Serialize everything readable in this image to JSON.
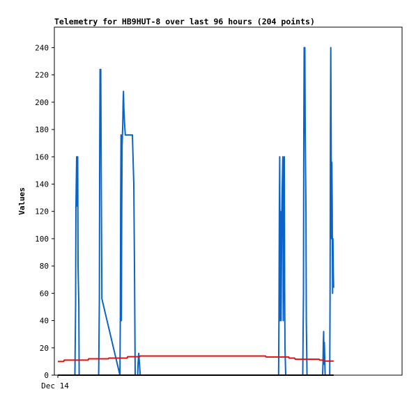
{
  "chart_data": {
    "type": "line",
    "title": "Telemetry for HB9HUT-8 over last 96 hours (204 points)",
    "xlabel": "",
    "ylabel": "Values",
    "ylim": [
      0,
      255
    ],
    "y_ticks": [
      0,
      20,
      40,
      60,
      80,
      100,
      120,
      140,
      160,
      180,
      200,
      220,
      240
    ],
    "x_ticks": [
      {
        "label": "Dec 14",
        "x": 0
      }
    ],
    "x_unit": "hours",
    "xlim": [
      0,
      96
    ],
    "grid": false,
    "legend": "none",
    "series": [
      {
        "color": "#0a64c8",
        "x": [
          4.8,
          5.0,
          5.1,
          5.3,
          5.4,
          5.6,
          5.7,
          5.9,
          6.0,
          6.2,
          11.5,
          11.7,
          11.8,
          11.9,
          12.0,
          12.1,
          12.2,
          12.4,
          17.5,
          17.6,
          17.7,
          17.8,
          17.9,
          18.0,
          18.1,
          18.3,
          18.4,
          18.5,
          18.6,
          18.8,
          19.0,
          19.3,
          19.5,
          19.7,
          20.0,
          20.4,
          21.0,
          21.4,
          21.6,
          21.8,
          22.5,
          22.6,
          22.8,
          23.0,
          23.2,
          62.2,
          62.3,
          62.4,
          62.5,
          62.6,
          62.7,
          62.9,
          63.1,
          63.4,
          63.5,
          63.6,
          63.8,
          63.9,
          64.0,
          64.2,
          64.5,
          64.7,
          69.0,
          69.2,
          69.3,
          69.4,
          69.5,
          69.6,
          69.7,
          69.9,
          70.0,
          70.2,
          74.6,
          74.7,
          74.8,
          74.9,
          75.0,
          75.1,
          75.3,
          76.6,
          76.7,
          76.8,
          76.9,
          77.0,
          77.1,
          77.2,
          77.3,
          77.4,
          77.5,
          77.6,
          77.7
        ],
        "values": [
          0,
          52,
          124,
          160,
          124,
          160,
          80,
          52,
          0,
          0,
          0,
          56,
          168,
          224,
          224,
          224,
          168,
          56,
          0,
          44,
          132,
          176,
          40,
          120,
          168,
          184,
          200,
          208,
          196,
          184,
          176,
          176,
          176,
          176,
          176,
          176,
          176,
          140,
          80,
          0,
          0,
          8,
          16,
          8,
          0,
          0,
          40,
          120,
          160,
          40,
          120,
          40,
          120,
          160,
          40,
          120,
          160,
          64,
          20,
          0,
          0,
          0,
          0,
          60,
          180,
          240,
          200,
          240,
          180,
          120,
          40,
          0,
          0,
          8,
          24,
          32,
          8,
          24,
          0,
          0,
          60,
          180,
          240,
          180,
          100,
          156,
          128,
          60,
          100,
          76,
          64
        ]
      },
      {
        "color": "#e01010",
        "x": [
          0.0,
          1.6,
          1.8,
          8.5,
          8.7,
          14.2,
          14.4,
          19.5,
          19.7,
          23.0,
          23.2,
          58.5,
          58.7,
          65.0,
          65.2,
          66.7,
          66.9,
          73.6,
          73.8,
          75.0,
          75.2,
          77.7
        ],
        "values": [
          10,
          10,
          11,
          11,
          12,
          12,
          12.5,
          12.5,
          13.5,
          13.5,
          14,
          14,
          13.3,
          13.3,
          12.5,
          12.5,
          11.7,
          11.7,
          11,
          11,
          10.3,
          10.3
        ]
      },
      {
        "color": "#000000",
        "x": [
          0.0,
          77.7
        ],
        "values": [
          0,
          0
        ]
      }
    ]
  }
}
